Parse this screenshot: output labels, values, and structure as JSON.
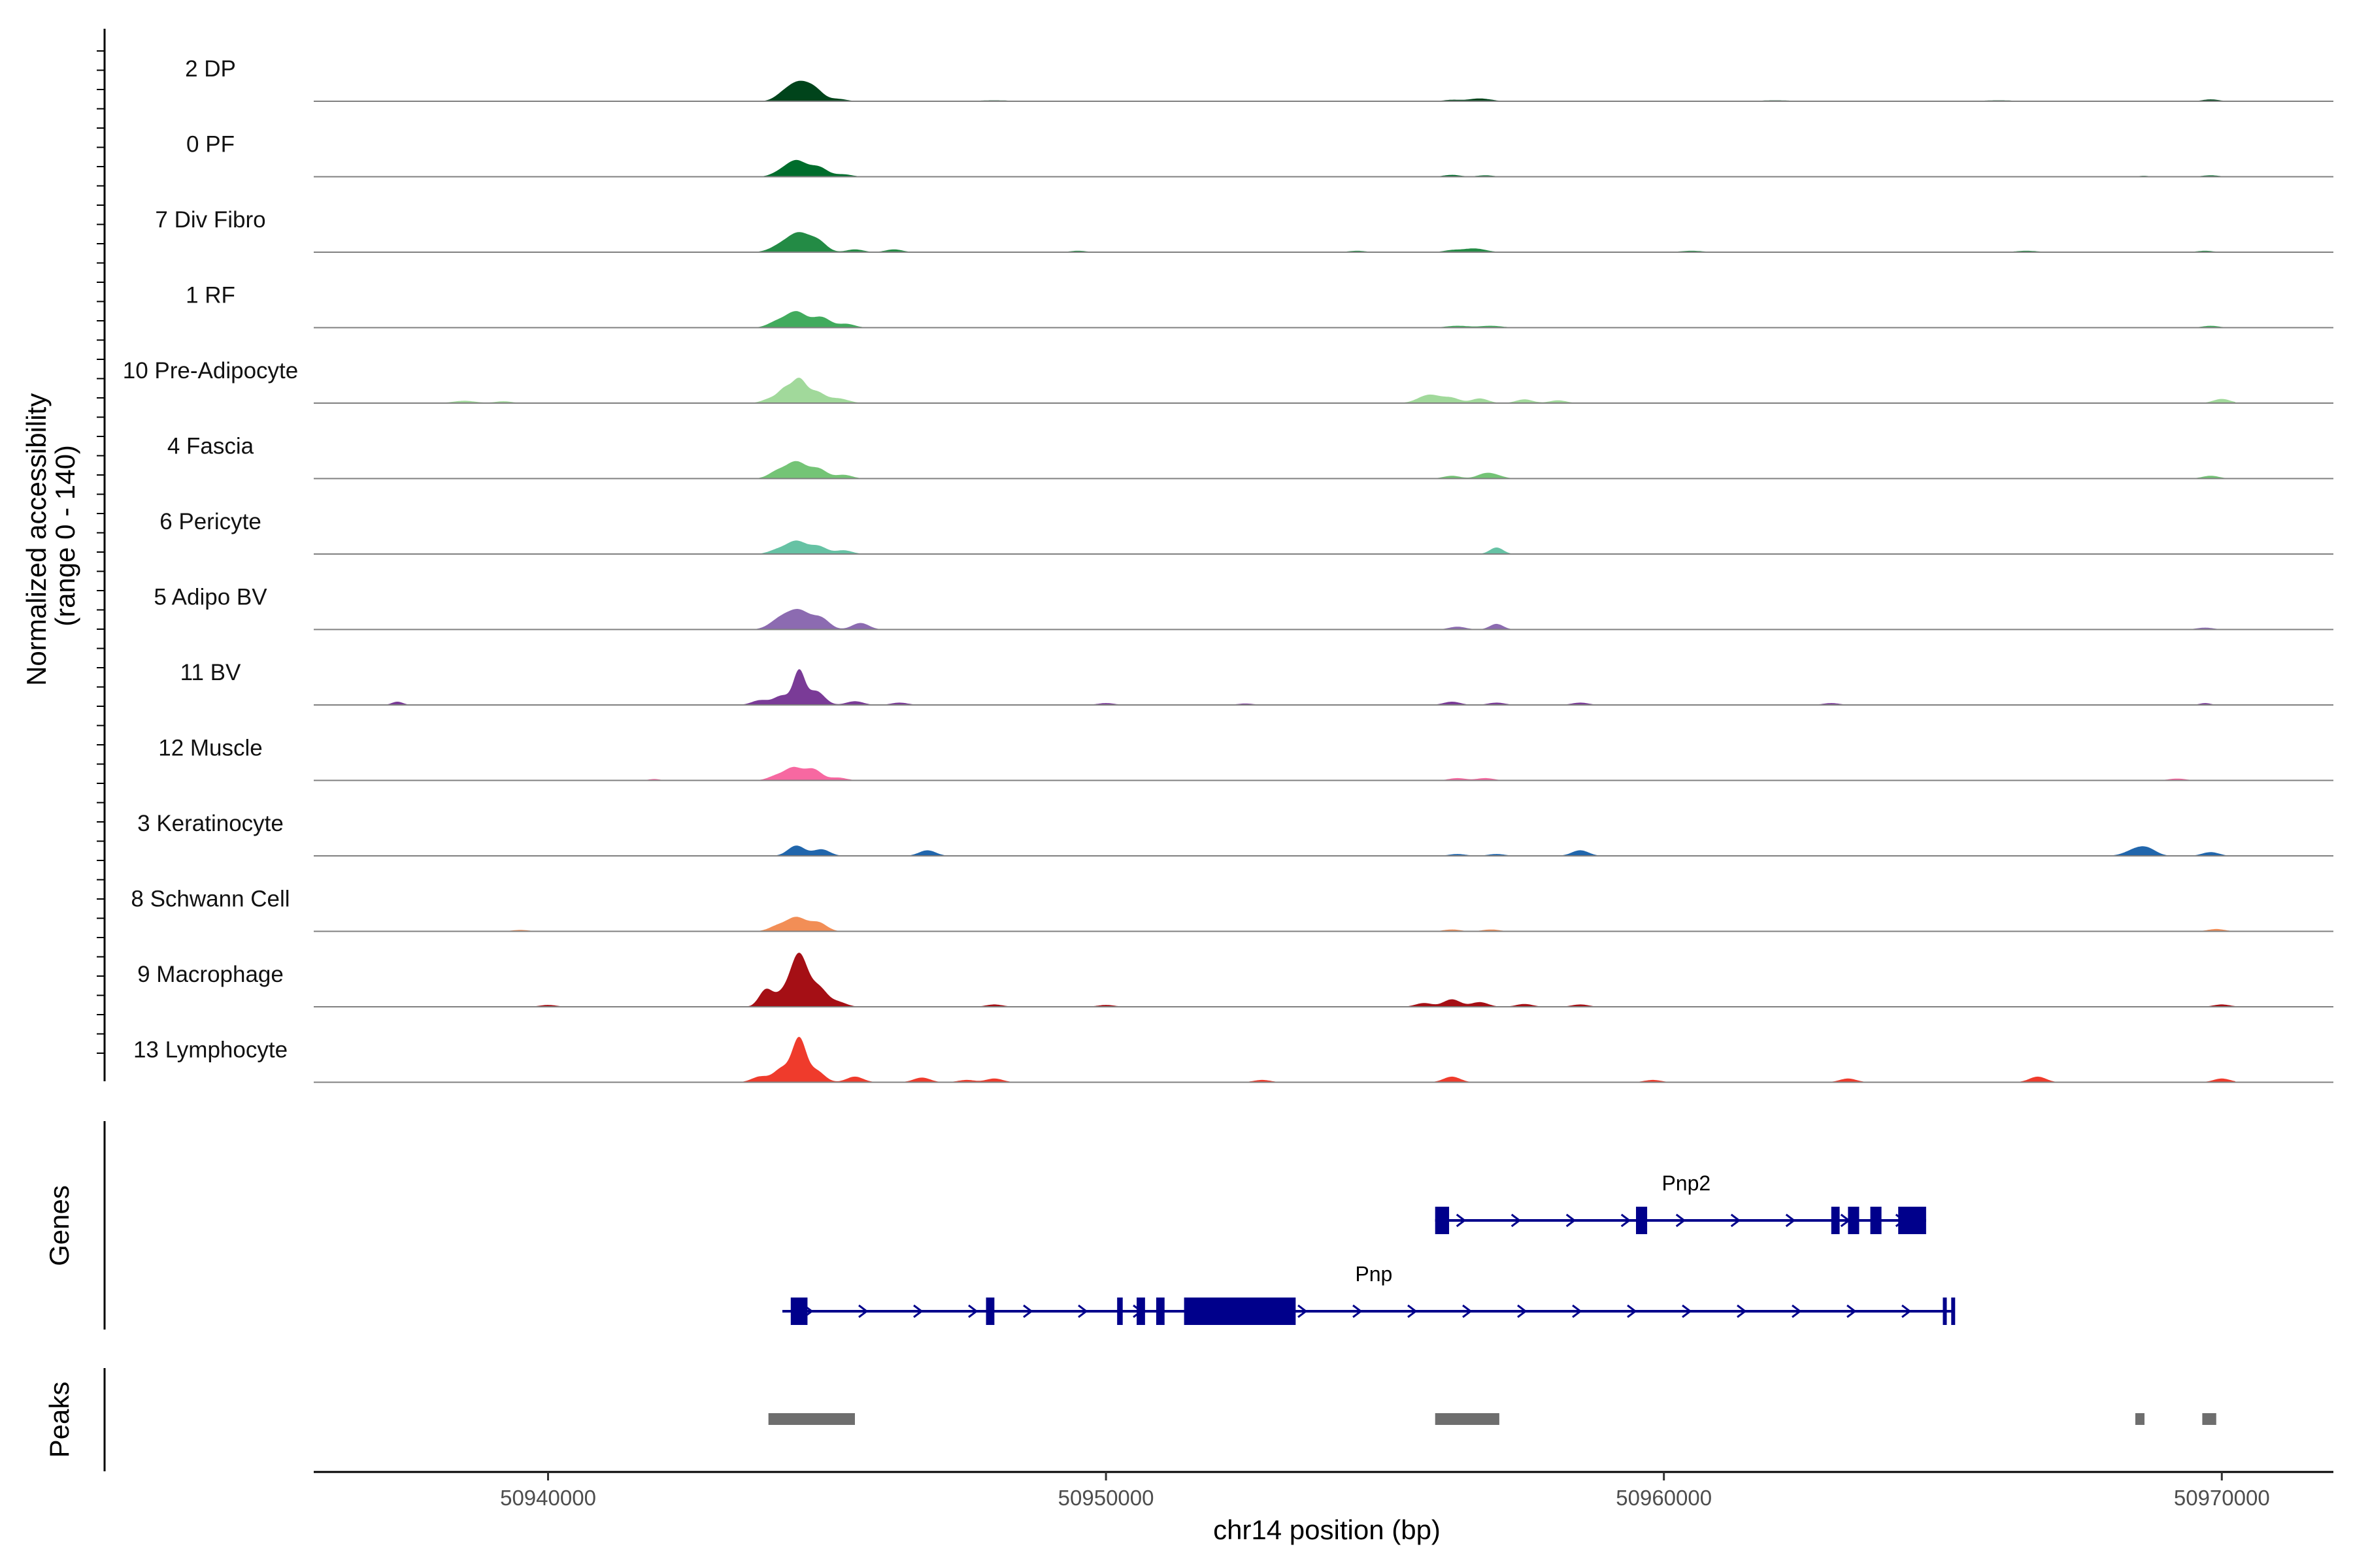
{
  "chart_data": {
    "type": "area",
    "y_axis_title_lines": [
      "Normalized accessibility",
      "(range 0 - 140)"
    ],
    "y_range": [
      0,
      140
    ],
    "x_axis_title": "chr14 position (bp)",
    "x_range": [
      50935800,
      50972000
    ],
    "x_ticks": [
      50940000,
      50950000,
      50960000,
      50970000
    ],
    "x_tick_labels": [
      "50940000",
      "50950000",
      "50960000",
      "50970000"
    ],
    "tracks": [
      {
        "name": "2 DP",
        "color": "#00441b",
        "peaks": [
          [
            50944500,
            40,
            200
          ],
          [
            50944800,
            18,
            150
          ],
          [
            50944200,
            10,
            150
          ],
          [
            50945200,
            5,
            150
          ],
          [
            50956700,
            6,
            200
          ],
          [
            50956200,
            3,
            150
          ],
          [
            50969800,
            4,
            150
          ],
          [
            50948000,
            2,
            300
          ],
          [
            50962000,
            2,
            300
          ],
          [
            50966000,
            2,
            300
          ]
        ]
      },
      {
        "name": "0 PF",
        "color": "#006d2c",
        "peaks": [
          [
            50944450,
            34,
            180
          ],
          [
            50944850,
            20,
            160
          ],
          [
            50944150,
            8,
            150
          ],
          [
            50945300,
            5,
            150
          ],
          [
            50956200,
            4,
            150
          ],
          [
            50956800,
            3,
            150
          ],
          [
            50969800,
            3,
            150
          ],
          [
            50968600,
            2,
            100
          ]
        ]
      },
      {
        "name": "7 Div Fibro",
        "color": "#238b45",
        "peaks": [
          [
            50944500,
            40,
            200
          ],
          [
            50944850,
            20,
            150
          ],
          [
            50944150,
            12,
            180
          ],
          [
            50945500,
            6,
            150
          ],
          [
            50946200,
            6,
            150
          ],
          [
            50956600,
            8,
            200
          ],
          [
            50956200,
            4,
            150
          ],
          [
            50954500,
            3,
            150
          ],
          [
            50949500,
            3,
            150
          ],
          [
            50960500,
            3,
            200
          ],
          [
            50966500,
            3,
            200
          ],
          [
            50969700,
            3,
            150
          ]
        ]
      },
      {
        "name": "1 RF",
        "color": "#41ab5d",
        "peaks": [
          [
            50944450,
            34,
            180
          ],
          [
            50944900,
            22,
            160
          ],
          [
            50944100,
            12,
            160
          ],
          [
            50945350,
            8,
            150
          ],
          [
            50956300,
            4,
            200
          ],
          [
            50956900,
            4,
            200
          ],
          [
            50969800,
            4,
            150
          ]
        ]
      },
      {
        "name": "10 Pre-Adipocyte",
        "color": "#a1d99b",
        "peaks": [
          [
            50944500,
            48,
            120
          ],
          [
            50944250,
            28,
            120
          ],
          [
            50944800,
            24,
            150
          ],
          [
            50945200,
            10,
            180
          ],
          [
            50944000,
            10,
            150
          ],
          [
            50955800,
            18,
            200
          ],
          [
            50956200,
            10,
            150
          ],
          [
            50956700,
            10,
            150
          ],
          [
            50957500,
            8,
            150
          ],
          [
            50958100,
            6,
            150
          ],
          [
            50970000,
            9,
            150
          ],
          [
            50938500,
            5,
            200
          ],
          [
            50939200,
            4,
            150
          ]
        ]
      },
      {
        "name": "4 Fascia",
        "color": "#74c476",
        "peaks": [
          [
            50944450,
            36,
            180
          ],
          [
            50944850,
            20,
            150
          ],
          [
            50944100,
            14,
            150
          ],
          [
            50945300,
            8,
            150
          ],
          [
            50956200,
            6,
            150
          ],
          [
            50956800,
            10,
            150
          ],
          [
            50957000,
            5,
            150
          ],
          [
            50969800,
            6,
            150
          ]
        ]
      },
      {
        "name": "6 Pericyte",
        "color": "#66c2a4",
        "peaks": [
          [
            50944450,
            28,
            180
          ],
          [
            50944850,
            16,
            150
          ],
          [
            50944100,
            8,
            150
          ],
          [
            50945300,
            8,
            150
          ],
          [
            50957000,
            14,
            120
          ]
        ]
      },
      {
        "name": "5 Adipo BV",
        "color": "#8c6bb1",
        "peaks": [
          [
            50944500,
            40,
            200
          ],
          [
            50944150,
            20,
            180
          ],
          [
            50944900,
            22,
            150
          ],
          [
            50945600,
            14,
            150
          ],
          [
            50956300,
            6,
            150
          ],
          [
            50957000,
            12,
            120
          ],
          [
            50969700,
            4,
            150
          ]
        ]
      },
      {
        "name": "11 BV",
        "color": "#7a3b97",
        "peaks": [
          [
            50944500,
            70,
            100
          ],
          [
            50944200,
            20,
            150
          ],
          [
            50944800,
            30,
            150
          ],
          [
            50943800,
            10,
            150
          ],
          [
            50945500,
            8,
            150
          ],
          [
            50946300,
            5,
            150
          ],
          [
            50937300,
            7,
            100
          ],
          [
            50956200,
            7,
            150
          ],
          [
            50957000,
            5,
            150
          ],
          [
            50958500,
            5,
            150
          ],
          [
            50963000,
            4,
            150
          ],
          [
            50969700,
            4,
            100
          ],
          [
            50950000,
            4,
            150
          ],
          [
            50952500,
            3,
            150
          ]
        ]
      },
      {
        "name": "12 Muscle",
        "color": "#f768a1",
        "peaks": [
          [
            50944400,
            26,
            150
          ],
          [
            50944750,
            24,
            150
          ],
          [
            50944100,
            10,
            150
          ],
          [
            50945200,
            6,
            150
          ],
          [
            50956300,
            5,
            150
          ],
          [
            50956800,
            5,
            150
          ],
          [
            50969200,
            4,
            150
          ],
          [
            50941900,
            3,
            100
          ]
        ]
      },
      {
        "name": "3 Keratinocyte",
        "color": "#2166ac",
        "peaks": [
          [
            50944450,
            22,
            150
          ],
          [
            50944900,
            14,
            150
          ],
          [
            50946800,
            12,
            150
          ],
          [
            50958500,
            12,
            150
          ],
          [
            50968500,
            16,
            200
          ],
          [
            50968700,
            8,
            150
          ],
          [
            50969800,
            8,
            150
          ],
          [
            50956300,
            4,
            150
          ],
          [
            50957000,
            4,
            150
          ]
        ]
      },
      {
        "name": "8 Schwann Cell",
        "color": "#f28e56",
        "peaks": [
          [
            50944450,
            30,
            180
          ],
          [
            50944850,
            18,
            150
          ],
          [
            50944100,
            10,
            150
          ],
          [
            50956200,
            4,
            150
          ],
          [
            50956900,
            4,
            150
          ],
          [
            50969900,
            5,
            150
          ],
          [
            50939500,
            3,
            150
          ]
        ]
      },
      {
        "name": "9 Macrophage",
        "color": "#a50f15",
        "peaks": [
          [
            50944500,
            110,
            150
          ],
          [
            50944850,
            40,
            150
          ],
          [
            50943900,
            35,
            120
          ],
          [
            50944200,
            25,
            150
          ],
          [
            50945200,
            10,
            150
          ],
          [
            50956200,
            16,
            150
          ],
          [
            50956700,
            10,
            150
          ],
          [
            50955700,
            8,
            150
          ],
          [
            50957500,
            6,
            150
          ],
          [
            50958500,
            5,
            150
          ],
          [
            50970000,
            5,
            150
          ],
          [
            50948000,
            5,
            150
          ],
          [
            50950000,
            4,
            150
          ],
          [
            50940000,
            4,
            150
          ]
        ]
      },
      {
        "name": "13 Lymphocyte",
        "color": "#ef3b2c",
        "peaks": [
          [
            50944500,
            90,
            120
          ],
          [
            50944200,
            30,
            150
          ],
          [
            50944800,
            25,
            150
          ],
          [
            50943800,
            12,
            150
          ],
          [
            50945500,
            12,
            150
          ],
          [
            50946700,
            10,
            150
          ],
          [
            50948000,
            8,
            150
          ],
          [
            50956200,
            12,
            150
          ],
          [
            50963300,
            8,
            150
          ],
          [
            50966700,
            12,
            150
          ],
          [
            50970000,
            8,
            150
          ],
          [
            50959800,
            5,
            150
          ],
          [
            50952800,
            5,
            150
          ],
          [
            50947500,
            5,
            150
          ]
        ]
      }
    ],
    "genes_track_label": "Genes",
    "genes": [
      {
        "name": "Pnp2",
        "color": "#00008b",
        "row": 0,
        "start": 50955900,
        "end": 50964700,
        "exons": [
          [
            50955900,
            50956150
          ],
          [
            50959500,
            50959700
          ],
          [
            50963000,
            50963150
          ],
          [
            50963300,
            50963500
          ],
          [
            50963700,
            50963900
          ],
          [
            50964200,
            50964700
          ]
        ]
      },
      {
        "name": "Pnp",
        "color": "#00008b",
        "row": 1,
        "start": 50944200,
        "end": 50965200,
        "exons": [
          [
            50944350,
            50944650
          ],
          [
            50947850,
            50948000
          ],
          [
            50950200,
            50950300
          ],
          [
            50950550,
            50950700
          ],
          [
            50950900,
            50951050
          ],
          [
            50951400,
            50953400
          ],
          [
            50965000,
            50965050
          ],
          [
            50965150,
            50965200
          ]
        ]
      }
    ],
    "peaks_track_label": "Peaks",
    "peak_color": "#6e6e6e",
    "peak_regions": [
      [
        50943950,
        50945500
      ],
      [
        50955900,
        50957050
      ],
      [
        50968450,
        50968600
      ],
      [
        50969650,
        50969900
      ]
    ]
  }
}
